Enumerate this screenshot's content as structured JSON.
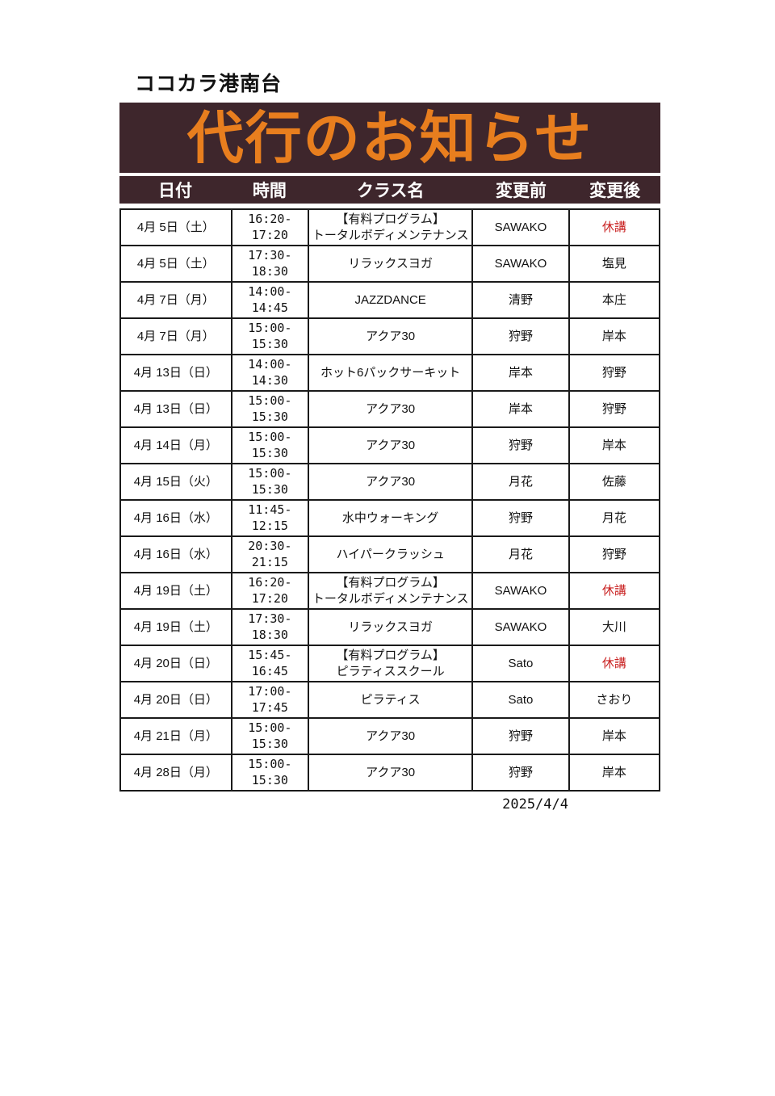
{
  "page": {
    "facility_name": "ココカラ港南台",
    "banner_title": "代行のお知らせ",
    "footer_date": "2025/4/4"
  },
  "colors": {
    "banner_bg": "#3e262c",
    "title_orange": "#e87e1e",
    "cancel_red": "#c92121"
  },
  "table": {
    "columns": [
      "日付",
      "時間",
      "クラス名",
      "変更前",
      "変更後"
    ],
    "rows": [
      {
        "date": "4月 5日（土）",
        "time": "16:20-17:20",
        "class_lines": [
          "【有料プログラム】",
          "トータルボディメンテナンス"
        ],
        "before": "SAWAKO",
        "after": "休講",
        "cancelled": true
      },
      {
        "date": "4月 5日（土）",
        "time": "17:30-18:30",
        "class_lines": [
          "リラックスヨガ"
        ],
        "before": "SAWAKO",
        "after": "塩見",
        "cancelled": false
      },
      {
        "date": "4月 7日（月）",
        "time": "14:00-14:45",
        "class_lines": [
          "JAZZDANCE"
        ],
        "before": "清野",
        "after": "本庄",
        "cancelled": false
      },
      {
        "date": "4月 7日（月）",
        "time": "15:00-15:30",
        "class_lines": [
          "アクア30"
        ],
        "before": "狩野",
        "after": "岸本",
        "cancelled": false
      },
      {
        "date": "4月 13日（日）",
        "time": "14:00-14:30",
        "class_lines": [
          "ホット6パックサーキット"
        ],
        "before": "岸本",
        "after": "狩野",
        "cancelled": false
      },
      {
        "date": "4月 13日（日）",
        "time": "15:00-15:30",
        "class_lines": [
          "アクア30"
        ],
        "before": "岸本",
        "after": "狩野",
        "cancelled": false
      },
      {
        "date": "4月 14日（月）",
        "time": "15:00-15:30",
        "class_lines": [
          "アクア30"
        ],
        "before": "狩野",
        "after": "岸本",
        "cancelled": false
      },
      {
        "date": "4月 15日（火）",
        "time": "15:00-15:30",
        "class_lines": [
          "アクア30"
        ],
        "before": "月花",
        "after": "佐藤",
        "cancelled": false
      },
      {
        "date": "4月 16日（水）",
        "time": "11:45-12:15",
        "class_lines": [
          "水中ウォーキング"
        ],
        "before": "狩野",
        "after": "月花",
        "cancelled": false
      },
      {
        "date": "4月 16日（水）",
        "time": "20:30-21:15",
        "class_lines": [
          "ハイパークラッシュ"
        ],
        "before": "月花",
        "after": "狩野",
        "cancelled": false
      },
      {
        "date": "4月 19日（土）",
        "time": "16:20-17:20",
        "class_lines": [
          "【有料プログラム】",
          "トータルボディメンテナンス"
        ],
        "before": "SAWAKO",
        "after": "休講",
        "cancelled": true
      },
      {
        "date": "4月 19日（土）",
        "time": "17:30-18:30",
        "class_lines": [
          "リラックスヨガ"
        ],
        "before": "SAWAKO",
        "after": "大川",
        "cancelled": false
      },
      {
        "date": "4月 20日（日）",
        "time": "15:45-16:45",
        "class_lines": [
          "【有料プログラム】",
          "ピラティススクール"
        ],
        "before": "Sato",
        "after": "休講",
        "cancelled": true
      },
      {
        "date": "4月 20日（日）",
        "time": "17:00-17:45",
        "class_lines": [
          "ピラティス"
        ],
        "before": "Sato",
        "after": "さおり",
        "cancelled": false
      },
      {
        "date": "4月 21日（月）",
        "time": "15:00-15:30",
        "class_lines": [
          "アクア30"
        ],
        "before": "狩野",
        "after": "岸本",
        "cancelled": false
      },
      {
        "date": "4月 28日（月）",
        "time": "15:00-15:30",
        "class_lines": [
          "アクア30"
        ],
        "before": "狩野",
        "after": "岸本",
        "cancelled": false
      }
    ]
  }
}
